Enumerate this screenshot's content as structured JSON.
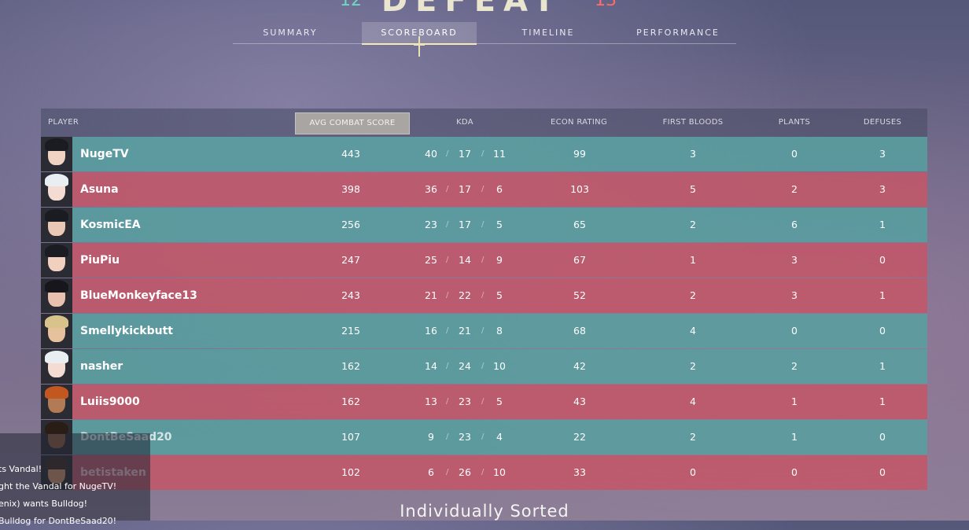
{
  "header": {
    "title_fragment": "DEFEAT",
    "score_left": "12",
    "score_right": "13"
  },
  "tabs": [
    {
      "label": "SUMMARY",
      "active": false
    },
    {
      "label": "SCOREBOARD",
      "active": true
    },
    {
      "label": "TIMELINE",
      "active": false
    },
    {
      "label": "PERFORMANCE",
      "active": false
    }
  ],
  "columns": {
    "player": "PLAYER",
    "acs": "AVG COMBAT SCORE",
    "kda": "KDA",
    "econ": "ECON RATING",
    "first_bloods": "FIRST BLOODS",
    "plants": "PLANTS",
    "defuses": "DEFUSES"
  },
  "players": [
    {
      "name": "NugeTV",
      "team": "ally",
      "self": true,
      "acs": "443",
      "k": "40",
      "d": "17",
      "a": "11",
      "econ": "99",
      "fb": "3",
      "plants": "0",
      "defuses": "3"
    },
    {
      "name": "Asuna",
      "team": "enemy",
      "acs": "398",
      "k": "36",
      "d": "17",
      "a": "6",
      "econ": "103",
      "fb": "5",
      "plants": "2",
      "defuses": "3"
    },
    {
      "name": "KosmicEA",
      "team": "ally",
      "acs": "256",
      "k": "23",
      "d": "17",
      "a": "5",
      "econ": "65",
      "fb": "2",
      "plants": "6",
      "defuses": "1"
    },
    {
      "name": "PiuPiu",
      "team": "enemy",
      "acs": "247",
      "k": "25",
      "d": "14",
      "a": "9",
      "econ": "67",
      "fb": "1",
      "plants": "3",
      "defuses": "0"
    },
    {
      "name": "BlueMonkeyface13",
      "team": "enemy",
      "acs": "243",
      "k": "21",
      "d": "22",
      "a": "5",
      "econ": "52",
      "fb": "2",
      "plants": "3",
      "defuses": "1"
    },
    {
      "name": "Smellykickbutt",
      "team": "ally",
      "acs": "215",
      "k": "16",
      "d": "21",
      "a": "8",
      "econ": "68",
      "fb": "4",
      "plants": "0",
      "defuses": "0"
    },
    {
      "name": "nasher",
      "team": "ally",
      "acs": "162",
      "k": "14",
      "d": "24",
      "a": "10",
      "econ": "42",
      "fb": "2",
      "plants": "2",
      "defuses": "1"
    },
    {
      "name": "Luiis9000",
      "team": "enemy",
      "acs": "162",
      "k": "13",
      "d": "23",
      "a": "5",
      "econ": "43",
      "fb": "4",
      "plants": "1",
      "defuses": "1"
    },
    {
      "name": "DontBeSaad20",
      "team": "ally",
      "acs": "107",
      "k": "9",
      "d": "23",
      "a": "4",
      "econ": "22",
      "fb": "2",
      "plants": "1",
      "defuses": "0"
    },
    {
      "name": "betistaken",
      "team": "enemy",
      "acs": "102",
      "k": "6",
      "d": "26",
      "a": "10",
      "econ": "33",
      "fb": "0",
      "plants": "0",
      "defuses": "0"
    }
  ],
  "chat": [
    "ts Vandal!",
    "ght the Vandal for NugeTV!",
    "enix) wants Bulldog!",
    "Bulldog for DontBeSaad20!"
  ],
  "footer": "Individually Sorted",
  "colors": {
    "ally": "#56a0a0",
    "enemy": "#c45668",
    "accent": "#f3eab8"
  }
}
